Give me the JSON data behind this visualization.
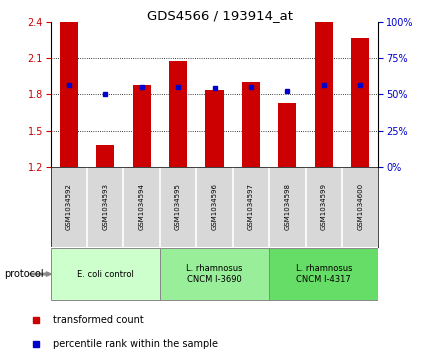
{
  "title": "GDS4566 / 193914_at",
  "samples": [
    "GSM1034592",
    "GSM1034593",
    "GSM1034594",
    "GSM1034595",
    "GSM1034596",
    "GSM1034597",
    "GSM1034598",
    "GSM1034599",
    "GSM1034600"
  ],
  "red_values": [
    2.4,
    1.38,
    1.88,
    2.08,
    1.84,
    1.9,
    1.73,
    2.4,
    2.27
  ],
  "blue_values": [
    1.88,
    1.8,
    1.86,
    1.86,
    1.85,
    1.86,
    1.83,
    1.88,
    1.88
  ],
  "ylim_left": [
    1.2,
    2.4
  ],
  "ylim_right": [
    0,
    100
  ],
  "yticks_left": [
    1.2,
    1.5,
    1.8,
    2.1,
    2.4
  ],
  "yticks_right": [
    0,
    25,
    50,
    75,
    100
  ],
  "red_color": "#CC0000",
  "blue_color": "#0000CC",
  "bar_width": 0.5,
  "groups": [
    {
      "label": "E. coli control",
      "indices": [
        0,
        1,
        2
      ],
      "color": "#ccffcc"
    },
    {
      "label": "L. rhamnosus\nCNCM I-3690",
      "indices": [
        3,
        4,
        5
      ],
      "color": "#99ee99"
    },
    {
      "label": "L. rhamnosus\nCNCM I-4317",
      "indices": [
        6,
        7,
        8
      ],
      "color": "#66dd66"
    }
  ],
  "legend_red": "transformed count",
  "legend_blue": "percentile rank within the sample",
  "protocol_label": "protocol",
  "sample_bg": "#d8d8d8",
  "plot_bg": "#ffffff"
}
